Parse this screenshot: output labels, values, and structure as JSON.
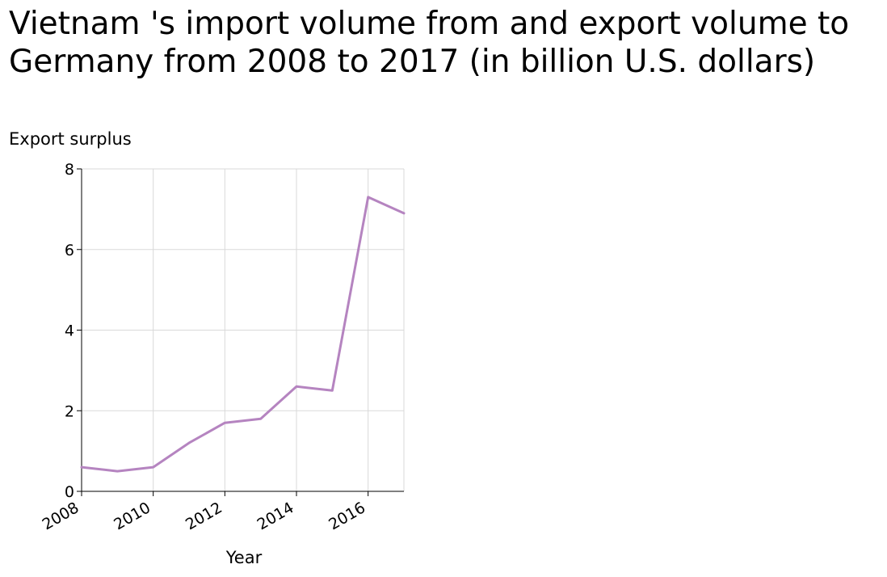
{
  "chart_data": {
    "type": "line",
    "title": "Vietnam 's import volume from and export volume to Germany from 2008 to 2017 (in billion U.S. dollars)",
    "xlabel": "Year",
    "ylabel": "Export surplus",
    "x": [
      2008,
      2009,
      2010,
      2011,
      2012,
      2013,
      2014,
      2015,
      2016,
      2017
    ],
    "series": [
      {
        "values": [
          0.6,
          0.5,
          0.6,
          1.2,
          1.7,
          1.8,
          2.6,
          2.5,
          7.3,
          6.9
        ]
      }
    ],
    "xlim": [
      2008,
      2017
    ],
    "ylim": [
      0,
      8
    ],
    "x_ticks": [
      "2008",
      "2010",
      "2012",
      "2014",
      "2016"
    ],
    "y_ticks": [
      "0",
      "2",
      "4",
      "6",
      "8"
    ],
    "grid": true,
    "line_color": "#b584c0",
    "grid_color": "#d9d9d9"
  }
}
